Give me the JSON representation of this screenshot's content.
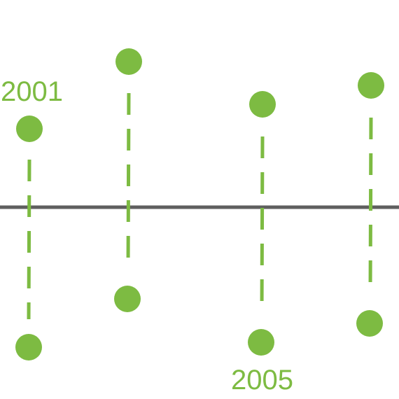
{
  "colors": {
    "accent": "#7dbb42",
    "axis": "#5f5f5f",
    "background": "#ffffff"
  },
  "labels": {
    "first_year": "2001",
    "last_year": "2005"
  }
}
